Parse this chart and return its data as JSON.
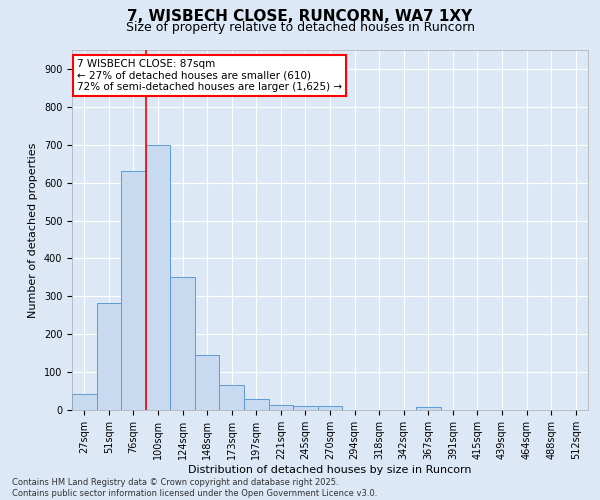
{
  "title": "7, WISBECH CLOSE, RUNCORN, WA7 1XY",
  "subtitle": "Size of property relative to detached houses in Runcorn",
  "xlabel": "Distribution of detached houses by size in Runcorn",
  "ylabel": "Number of detached properties",
  "categories": [
    "27sqm",
    "51sqm",
    "76sqm",
    "100sqm",
    "124sqm",
    "148sqm",
    "173sqm",
    "197sqm",
    "221sqm",
    "245sqm",
    "270sqm",
    "294sqm",
    "318sqm",
    "342sqm",
    "367sqm",
    "391sqm",
    "415sqm",
    "439sqm",
    "464sqm",
    "488sqm",
    "512sqm"
  ],
  "values": [
    42,
    283,
    632,
    700,
    350,
    145,
    65,
    28,
    14,
    11,
    11,
    0,
    0,
    0,
    7,
    0,
    0,
    0,
    0,
    0,
    0
  ],
  "bar_color": "#c8daf0",
  "bar_edge_color": "#5b9bd5",
  "red_line_x": 2.5,
  "annotation_text": "7 WISBECH CLOSE: 87sqm\n← 27% of detached houses are smaller (610)\n72% of semi-detached houses are larger (1,625) →",
  "ylim": [
    0,
    950
  ],
  "yticks": [
    0,
    100,
    200,
    300,
    400,
    500,
    600,
    700,
    800,
    900
  ],
  "footer": "Contains HM Land Registry data © Crown copyright and database right 2025.\nContains public sector information licensed under the Open Government Licence v3.0.",
  "background_color": "#dce8f5",
  "plot_bg_color": "#dce8f5",
  "grid_color": "#ffffff",
  "title_fontsize": 11,
  "subtitle_fontsize": 9,
  "axis_label_fontsize": 8,
  "tick_fontsize": 7,
  "annotation_fontsize": 7.5,
  "footer_fontsize": 6
}
